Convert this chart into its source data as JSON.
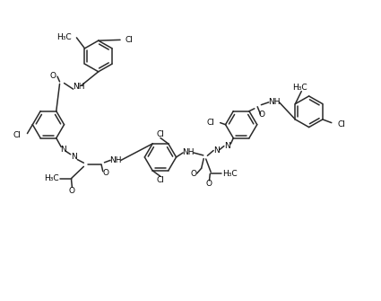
{
  "line_color": "#2a2a2a",
  "line_width": 1.1,
  "font_size": 6.5,
  "figsize": [
    4.25,
    3.35
  ],
  "dpi": 100,
  "xlim": [
    0,
    10
  ],
  "ylim": [
    0,
    8
  ]
}
